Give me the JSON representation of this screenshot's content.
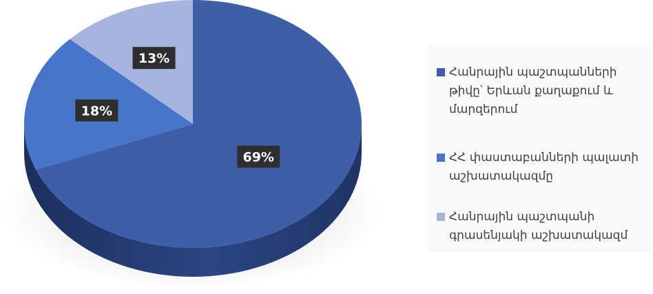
{
  "chart_data": {
    "type": "pie",
    "style": "3d",
    "slices": [
      {
        "label": "Հանրային պաշտպանների թիվը՝ Երևան քաղաքում և մարզերում",
        "value": 69,
        "display": "69%",
        "color": "#3e5fa8"
      },
      {
        "label": "ՀՀ փաստաբանների պալատի աշխատակազմը",
        "value": 18,
        "display": "18%",
        "color": "#4775c9"
      },
      {
        "label": "Հանրային պաշտպանի գրասենյակի աշխատակազմ",
        "value": 13,
        "display": "13%",
        "color": "#a7b5de"
      }
    ],
    "legend_position": "right"
  }
}
